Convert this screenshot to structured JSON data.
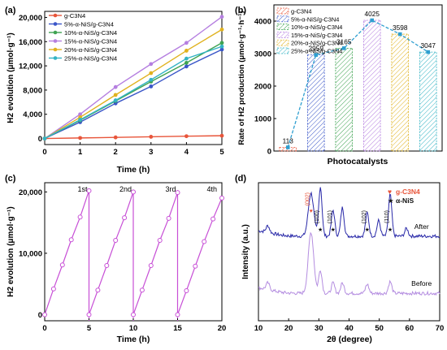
{
  "panels": {
    "a": {
      "letter": "(a)"
    },
    "b": {
      "letter": "(b)"
    },
    "c": {
      "letter": "(c)"
    },
    "d": {
      "letter": "(d)"
    }
  },
  "chart_data": [
    {
      "panel": "a",
      "type": "line",
      "xlabel": "Time (h)",
      "ylabel": "H2 evolution (μmol·g⁻¹)",
      "xlim": [
        0,
        5
      ],
      "ylim": [
        -1000,
        21000
      ],
      "xticks": [
        "0",
        "1",
        "2",
        "3",
        "4",
        "5"
      ],
      "yticks": [
        "0",
        "4,000",
        "8,000",
        "12,000",
        "16,000",
        "20,000"
      ],
      "x": [
        0,
        1,
        2,
        3,
        4,
        5
      ],
      "legend_position": "top-left",
      "series": [
        {
          "name": "g-C3N4",
          "color": "#e8553a",
          "marker": "circle",
          "values": [
            0,
            90,
            180,
            280,
            380,
            460
          ]
        },
        {
          "name": "5%-α-NiS/g-C3N4",
          "color": "#3a56c8",
          "marker": "circle",
          "values": [
            0,
            2700,
            5800,
            8600,
            11900,
            14700
          ]
        },
        {
          "name": "10%-α-NiS/g-C3N4",
          "color": "#3fa352",
          "marker": "circle",
          "values": [
            0,
            3000,
            6200,
            9400,
            12500,
            15800
          ]
        },
        {
          "name": "15%-α-NiS/g-C3N4",
          "color": "#b57fe0",
          "marker": "circle",
          "values": [
            0,
            4000,
            8500,
            12300,
            15800,
            20100
          ]
        },
        {
          "name": "20%-α-NiS/g-C3N4",
          "color": "#e0b21f",
          "marker": "circle",
          "values": [
            0,
            3500,
            7200,
            10800,
            14500,
            18000
          ]
        },
        {
          "name": "25%-α-NiS/g-C3N4",
          "color": "#33b3c4",
          "marker": "circle",
          "values": [
            0,
            3100,
            6300,
            9700,
            13200,
            15200
          ]
        }
      ]
    },
    {
      "panel": "b",
      "type": "bar",
      "xlabel": "Photocatalysts",
      "ylabel": "Rate of H2 production (μmol·g⁻¹·h⁻¹)",
      "ylim": [
        0,
        4500
      ],
      "yticks": [
        "0",
        "1000",
        "2000",
        "3000",
        "4000"
      ],
      "legend_position": "top-left",
      "categories": [
        "g-C3N4",
        "5%-α-NiS/g-C3N4",
        "10%-α-NiS/g-C3N4",
        "15%-α-NiS/g-C3N4",
        "20%-α-NiS/g-C3N4",
        "25%-α-NiS/g-C3N4"
      ],
      "values": [
        113,
        2959,
        3165,
        4025,
        3598,
        3047
      ],
      "value_labels": [
        "113",
        "2959",
        "3165",
        "4025",
        "3598",
        "3047"
      ],
      "colors": [
        "#e8553a",
        "#3a56c8",
        "#3fa352",
        "#b57fe0",
        "#e0b21f",
        "#33b3c4"
      ],
      "trend_line_color": "#2f9fd0"
    },
    {
      "panel": "c",
      "type": "line",
      "xlabel": "Time (h)",
      "ylabel": "H2 evolution (μmol·g⁻¹)",
      "xlim": [
        0,
        20
      ],
      "ylim": [
        -1000,
        21500
      ],
      "xticks": [
        "0",
        "5",
        "10",
        "15",
        "20"
      ],
      "yticks": [
        "0",
        "10,000",
        "20,000"
      ],
      "color": "#c74fd6",
      "cycle_labels": [
        "1st",
        "2nd",
        "3rd",
        "4th"
      ],
      "cycle_ends": [
        5,
        10,
        15
      ],
      "x": [
        0,
        1,
        2,
        3,
        4,
        5,
        5,
        6,
        7,
        8,
        9,
        10,
        10,
        11,
        12,
        13,
        14,
        15,
        15,
        16,
        17,
        18,
        19,
        20
      ],
      "values": [
        0,
        4200,
        8100,
        12200,
        15900,
        20200,
        0,
        4000,
        8000,
        12100,
        15800,
        20000,
        0,
        4000,
        8000,
        12100,
        15700,
        19900,
        0,
        3900,
        7900,
        11900,
        15600,
        19000
      ]
    },
    {
      "panel": "d",
      "type": "line",
      "xlabel": "2θ (degree)",
      "ylabel": "Intensity (a.u.)",
      "xlim": [
        10,
        70
      ],
      "xticks": [
        "10",
        "20",
        "30",
        "40",
        "50",
        "60",
        "70"
      ],
      "legend": [
        {
          "symbol": "♥",
          "label": "g-C3N4",
          "color": "#e8553a"
        },
        {
          "symbol": "★",
          "label": "α-NiS",
          "color": "#111111"
        }
      ],
      "annotations": [
        {
          "label": "(002)",
          "x": 27.4,
          "color": "#e8553a"
        },
        {
          "label": "(100)",
          "x": 30.5,
          "color": "#111111"
        },
        {
          "label": "(101)",
          "x": 34.7,
          "color": "#111111"
        },
        {
          "label": "(102)",
          "x": 46.0,
          "color": "#111111"
        },
        {
          "label": "(110)",
          "x": 53.6,
          "color": "#111111"
        }
      ],
      "series": [
        {
          "name": "After",
          "color": "#2828a8",
          "baseline": 0.62,
          "peaks": [
            [
              13.1,
              0.05
            ],
            [
              27.4,
              0.95
            ],
            [
              30.5,
              0.38
            ],
            [
              34.7,
              0.2
            ],
            [
              37.8,
              0.22
            ],
            [
              46.0,
              0.18
            ],
            [
              49.8,
              0.12
            ],
            [
              53.6,
              0.32
            ],
            [
              59.0,
              0.06
            ]
          ]
        },
        {
          "name": "Before",
          "color": "#b48de0",
          "baseline": 0.18,
          "peaks": [
            [
              13.1,
              0.05
            ],
            [
              27.4,
              0.65
            ],
            [
              30.5,
              0.18
            ],
            [
              34.7,
              0.08
            ],
            [
              37.8,
              0.08
            ],
            [
              46.0,
              0.07
            ],
            [
              53.6,
              0.09
            ]
          ]
        }
      ]
    }
  ]
}
